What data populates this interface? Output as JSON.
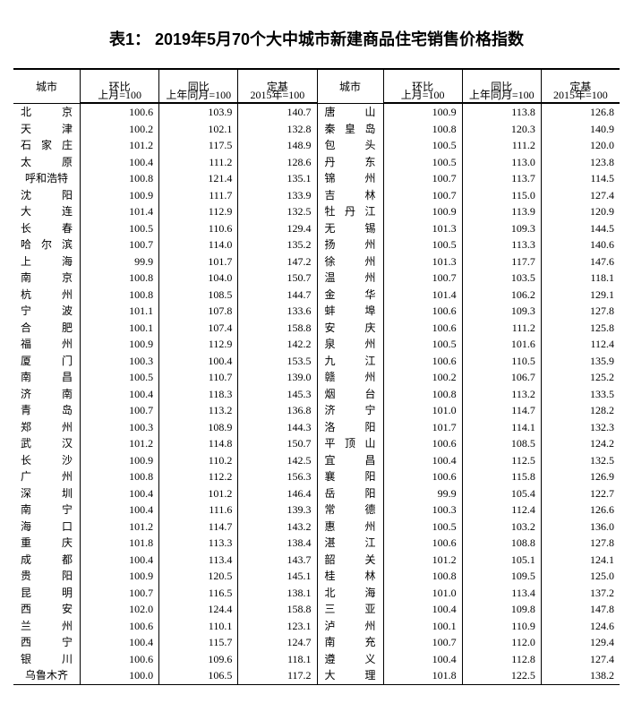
{
  "title": "表1： 2019年5月70个大中城市新建商品住宅销售价格指数",
  "headers": {
    "city": "城市",
    "mom": "环比",
    "yoy": "同比",
    "base": "定基",
    "mom_sub": "上月=100",
    "yoy_sub": "上年同月=100",
    "base_sub": "2015年=100"
  },
  "left": [
    {
      "city": "北京",
      "a": "100.6",
      "b": "103.9",
      "c": "140.7"
    },
    {
      "city": "天津",
      "a": "100.2",
      "b": "102.1",
      "c": "132.8"
    },
    {
      "city": "石家庄",
      "a": "101.2",
      "b": "117.5",
      "c": "148.9"
    },
    {
      "city": "太原",
      "a": "100.4",
      "b": "111.2",
      "c": "128.6"
    },
    {
      "city": "呼和浩特",
      "a": "100.8",
      "b": "121.4",
      "c": "135.1"
    },
    {
      "city": "沈阳",
      "a": "100.9",
      "b": "111.7",
      "c": "133.9"
    },
    {
      "city": "大连",
      "a": "101.4",
      "b": "112.9",
      "c": "132.5"
    },
    {
      "city": "长春",
      "a": "100.5",
      "b": "110.6",
      "c": "129.4"
    },
    {
      "city": "哈尔滨",
      "a": "100.7",
      "b": "114.0",
      "c": "135.2"
    },
    {
      "city": "上海",
      "a": "99.9",
      "b": "101.7",
      "c": "147.2"
    },
    {
      "city": "南京",
      "a": "100.8",
      "b": "104.0",
      "c": "150.7"
    },
    {
      "city": "杭州",
      "a": "100.8",
      "b": "108.5",
      "c": "144.7"
    },
    {
      "city": "宁波",
      "a": "101.1",
      "b": "107.8",
      "c": "133.6"
    },
    {
      "city": "合肥",
      "a": "100.1",
      "b": "107.4",
      "c": "158.8"
    },
    {
      "city": "福州",
      "a": "100.9",
      "b": "112.9",
      "c": "142.2"
    },
    {
      "city": "厦门",
      "a": "100.3",
      "b": "100.4",
      "c": "153.5"
    },
    {
      "city": "南昌",
      "a": "100.5",
      "b": "110.7",
      "c": "139.0"
    },
    {
      "city": "济南",
      "a": "100.4",
      "b": "118.3",
      "c": "145.3"
    },
    {
      "city": "青岛",
      "a": "100.7",
      "b": "113.2",
      "c": "136.8"
    },
    {
      "city": "郑州",
      "a": "100.3",
      "b": "108.9",
      "c": "144.3"
    },
    {
      "city": "武汉",
      "a": "101.2",
      "b": "114.8",
      "c": "150.7"
    },
    {
      "city": "长沙",
      "a": "100.9",
      "b": "110.2",
      "c": "142.5"
    },
    {
      "city": "广州",
      "a": "100.8",
      "b": "112.2",
      "c": "156.3"
    },
    {
      "city": "深圳",
      "a": "100.4",
      "b": "101.2",
      "c": "146.4"
    },
    {
      "city": "南宁",
      "a": "100.4",
      "b": "111.6",
      "c": "139.3"
    },
    {
      "city": "海口",
      "a": "101.2",
      "b": "114.7",
      "c": "143.2"
    },
    {
      "city": "重庆",
      "a": "101.8",
      "b": "113.3",
      "c": "138.4"
    },
    {
      "city": "成都",
      "a": "100.4",
      "b": "113.4",
      "c": "143.7"
    },
    {
      "city": "贵阳",
      "a": "100.9",
      "b": "120.5",
      "c": "145.1"
    },
    {
      "city": "昆明",
      "a": "100.7",
      "b": "116.5",
      "c": "138.1"
    },
    {
      "city": "西安",
      "a": "102.0",
      "b": "124.4",
      "c": "158.8"
    },
    {
      "city": "兰州",
      "a": "100.6",
      "b": "110.1",
      "c": "123.1"
    },
    {
      "city": "西宁",
      "a": "100.4",
      "b": "115.7",
      "c": "124.7"
    },
    {
      "city": "银川",
      "a": "100.6",
      "b": "109.6",
      "c": "118.1"
    },
    {
      "city": "乌鲁木齐",
      "a": "100.0",
      "b": "106.5",
      "c": "117.2"
    }
  ],
  "right": [
    {
      "city": "唐山",
      "a": "100.9",
      "b": "113.8",
      "c": "126.8"
    },
    {
      "city": "秦皇岛",
      "a": "100.8",
      "b": "120.3",
      "c": "140.9"
    },
    {
      "city": "包头",
      "a": "100.5",
      "b": "111.2",
      "c": "120.0"
    },
    {
      "city": "丹东",
      "a": "100.5",
      "b": "113.0",
      "c": "123.8"
    },
    {
      "city": "锦州",
      "a": "100.7",
      "b": "113.7",
      "c": "114.5"
    },
    {
      "city": "吉林",
      "a": "100.7",
      "b": "115.0",
      "c": "127.4"
    },
    {
      "city": "牡丹江",
      "a": "100.9",
      "b": "113.9",
      "c": "120.9"
    },
    {
      "city": "无锡",
      "a": "101.3",
      "b": "109.3",
      "c": "144.5"
    },
    {
      "city": "扬州",
      "a": "100.5",
      "b": "113.3",
      "c": "140.6"
    },
    {
      "city": "徐州",
      "a": "101.3",
      "b": "117.7",
      "c": "147.6"
    },
    {
      "city": "温州",
      "a": "100.7",
      "b": "103.5",
      "c": "118.1"
    },
    {
      "city": "金华",
      "a": "101.4",
      "b": "106.2",
      "c": "129.1"
    },
    {
      "city": "蚌埠",
      "a": "100.6",
      "b": "109.3",
      "c": "127.8"
    },
    {
      "city": "安庆",
      "a": "100.6",
      "b": "111.2",
      "c": "125.8"
    },
    {
      "city": "泉州",
      "a": "100.5",
      "b": "101.6",
      "c": "112.4"
    },
    {
      "city": "九江",
      "a": "100.6",
      "b": "110.5",
      "c": "135.9"
    },
    {
      "city": "赣州",
      "a": "100.2",
      "b": "106.7",
      "c": "125.2"
    },
    {
      "city": "烟台",
      "a": "100.8",
      "b": "113.2",
      "c": "133.5"
    },
    {
      "city": "济宁",
      "a": "101.0",
      "b": "114.7",
      "c": "128.2"
    },
    {
      "city": "洛阳",
      "a": "101.7",
      "b": "114.1",
      "c": "132.3"
    },
    {
      "city": "平顶山",
      "a": "100.6",
      "b": "108.5",
      "c": "124.2"
    },
    {
      "city": "宜昌",
      "a": "100.4",
      "b": "112.5",
      "c": "132.5"
    },
    {
      "city": "襄阳",
      "a": "100.6",
      "b": "115.8",
      "c": "126.9"
    },
    {
      "city": "岳阳",
      "a": "99.9",
      "b": "105.4",
      "c": "122.7"
    },
    {
      "city": "常德",
      "a": "100.3",
      "b": "112.4",
      "c": "126.6"
    },
    {
      "city": "惠州",
      "a": "100.5",
      "b": "103.2",
      "c": "136.0"
    },
    {
      "city": "湛江",
      "a": "100.6",
      "b": "108.8",
      "c": "127.8"
    },
    {
      "city": "韶关",
      "a": "101.2",
      "b": "105.1",
      "c": "124.1"
    },
    {
      "city": "桂林",
      "a": "100.8",
      "b": "109.5",
      "c": "125.0"
    },
    {
      "city": "北海",
      "a": "101.0",
      "b": "113.4",
      "c": "137.2"
    },
    {
      "city": "三亚",
      "a": "100.4",
      "b": "109.8",
      "c": "147.8"
    },
    {
      "city": "泸州",
      "a": "100.1",
      "b": "110.9",
      "c": "124.6"
    },
    {
      "city": "南充",
      "a": "100.7",
      "b": "112.0",
      "c": "129.4"
    },
    {
      "city": "遵义",
      "a": "100.4",
      "b": "112.8",
      "c": "127.4"
    },
    {
      "city": "大理",
      "a": "101.8",
      "b": "122.5",
      "c": "138.2"
    }
  ]
}
